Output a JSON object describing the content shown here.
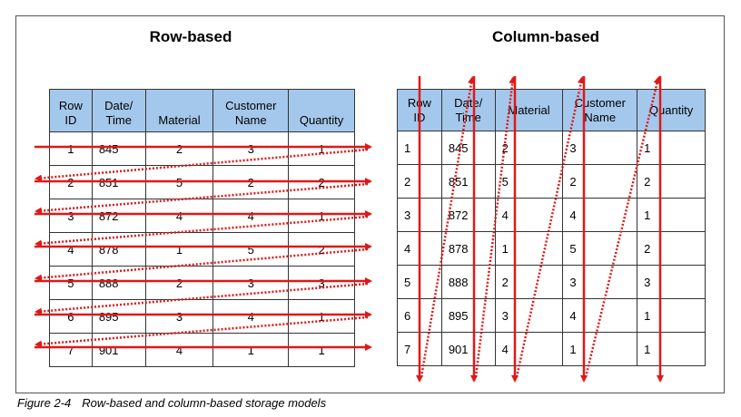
{
  "left": {
    "title": "Row-based",
    "headers": [
      "Row\nID",
      "Date/\nTime",
      "Material",
      "Customer\nName",
      "Quantity"
    ],
    "rows": [
      [
        "1",
        "845",
        "2",
        "3",
        "1"
      ],
      [
        "2",
        "851",
        "5",
        "2",
        "2"
      ],
      [
        "3",
        "872",
        "4",
        "4",
        "1"
      ],
      [
        "4",
        "878",
        "1",
        "5",
        "2"
      ],
      [
        "5",
        "888",
        "2",
        "3",
        "3"
      ],
      [
        "6",
        "895",
        "3",
        "4",
        "1"
      ],
      [
        "7",
        "901",
        "4",
        "1",
        "1"
      ]
    ]
  },
  "right": {
    "title": "Column-based",
    "headers": [
      "Row\nID",
      "Date/\nTime",
      "Material",
      "Customer\nName",
      "Quantity"
    ],
    "rows": [
      [
        "1",
        "845",
        "2",
        "3",
        "1"
      ],
      [
        "2",
        "851",
        "5",
        "2",
        "2"
      ],
      [
        "3",
        "872",
        "4",
        "4",
        "1"
      ],
      [
        "4",
        "878",
        "1",
        "5",
        "2"
      ],
      [
        "5",
        "888",
        "2",
        "3",
        "3"
      ],
      [
        "6",
        "895",
        "3",
        "4",
        "1"
      ],
      [
        "7",
        "901",
        "4",
        "1",
        "1"
      ]
    ]
  },
  "caption": {
    "label": "Figure 2-4",
    "text": "Row-based and column-based storage models"
  },
  "colors": {
    "header_fill": "#a4c8ec",
    "arrow": "#e01818",
    "border": "#333333"
  }
}
